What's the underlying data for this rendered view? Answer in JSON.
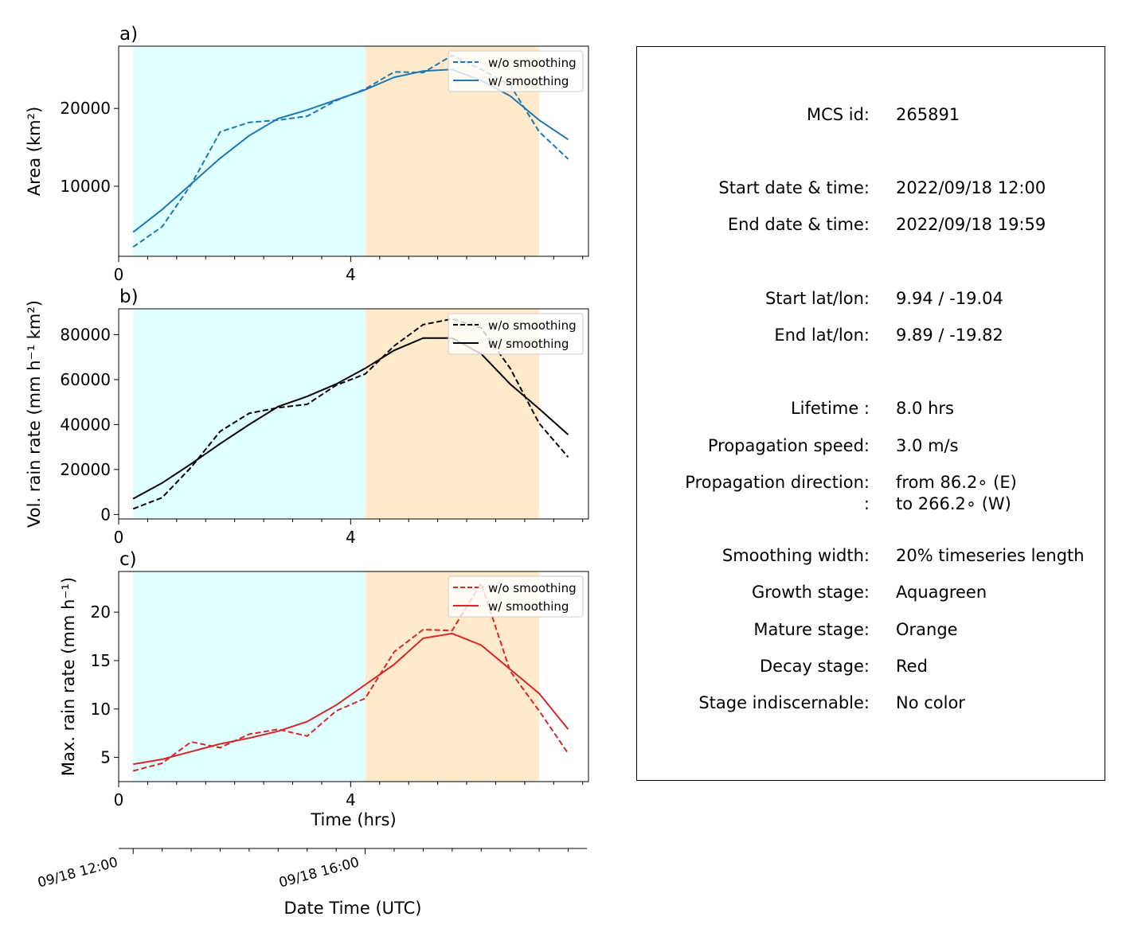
{
  "colors": {
    "growth_shade": "#e0ffff",
    "mature_shade": "#ffebcc",
    "area_line": "#1f77b4",
    "volrain_line": "#000000",
    "maxrain_line": "#d62728"
  },
  "chart_data": [
    {
      "type": "line",
      "panel_label": "a)",
      "ylabel": "Area  (km²)",
      "xlabel": "",
      "xlim": [
        0,
        8.1
      ],
      "ylim": [
        1000,
        28000
      ],
      "x_ticks": [
        0,
        4
      ],
      "y_ticks": [
        10000,
        20000
      ],
      "shaded_regions": [
        {
          "stage": "growth",
          "x": [
            0.25,
            4.25
          ]
        },
        {
          "stage": "mature",
          "x": [
            4.25,
            7.25
          ]
        }
      ],
      "legend": {
        "position": "top-right",
        "entries": [
          "w/o smoothing",
          "w/ smoothing"
        ]
      },
      "series": [
        {
          "name": "w/o smoothing",
          "style": "dashed",
          "x": [
            0.25,
            0.75,
            1.25,
            1.75,
            2.25,
            2.75,
            3.25,
            3.75,
            4.25,
            4.75,
            5.25,
            5.75,
            6.25,
            6.75,
            7.25,
            7.75
          ],
          "values": [
            2200,
            4800,
            10200,
            17000,
            18200,
            18500,
            19000,
            21000,
            22500,
            24700,
            24600,
            26800,
            25000,
            23000,
            17000,
            13500
          ]
        },
        {
          "name": "w/ smoothing",
          "style": "solid",
          "x": [
            0.25,
            0.75,
            1.25,
            1.75,
            2.25,
            2.75,
            3.25,
            3.75,
            4.25,
            4.75,
            5.25,
            5.75,
            6.25,
            6.75,
            7.25,
            7.75
          ],
          "values": [
            4100,
            7000,
            10300,
            13600,
            16500,
            18700,
            19800,
            21100,
            22400,
            24000,
            24800,
            25000,
            23600,
            21600,
            18500,
            16000
          ]
        }
      ]
    },
    {
      "type": "line",
      "panel_label": "b)",
      "ylabel": "Vol. rain rate (mm h⁻¹ km²)",
      "xlabel": "",
      "xlim": [
        0,
        8.1
      ],
      "ylim": [
        -2000,
        91500
      ],
      "x_ticks": [
        0,
        4
      ],
      "y_ticks": [
        0,
        20000,
        40000,
        60000,
        80000
      ],
      "shaded_regions": [
        {
          "stage": "growth",
          "x": [
            0.25,
            4.25
          ]
        },
        {
          "stage": "mature",
          "x": [
            4.25,
            7.25
          ]
        }
      ],
      "legend": {
        "position": "top-right",
        "entries": [
          "w/o smoothing",
          "w/ smoothing"
        ]
      },
      "series": [
        {
          "name": "w/o smoothing",
          "style": "dashed",
          "x": [
            0.25,
            0.75,
            1.25,
            1.75,
            2.25,
            2.75,
            3.25,
            3.75,
            4.25,
            4.75,
            5.25,
            5.75,
            6.25,
            6.75,
            7.25,
            7.75
          ],
          "values": [
            2500,
            7500,
            21000,
            37000,
            45000,
            47500,
            49000,
            57500,
            62500,
            75000,
            84500,
            87000,
            83000,
            65000,
            40500,
            25500
          ]
        },
        {
          "name": "w/ smoothing",
          "style": "solid",
          "x": [
            0.25,
            0.75,
            1.25,
            1.75,
            2.25,
            2.75,
            3.25,
            3.75,
            4.25,
            4.75,
            5.25,
            5.75,
            6.25,
            6.75,
            7.25,
            7.75
          ],
          "values": [
            7000,
            14000,
            22500,
            31500,
            40000,
            48000,
            52500,
            58000,
            65000,
            73000,
            78500,
            78500,
            71500,
            58000,
            47000,
            35500
          ]
        }
      ]
    },
    {
      "type": "line",
      "panel_label": "c)",
      "ylabel": "Max. rain rate  (mm h⁻¹)",
      "xlabel": "Time (hrs)",
      "xlim": [
        0,
        8.1
      ],
      "ylim": [
        2.5,
        24.2
      ],
      "x_ticks": [
        0,
        4
      ],
      "y_ticks": [
        5,
        10,
        15,
        20
      ],
      "shaded_regions": [
        {
          "stage": "growth",
          "x": [
            0.25,
            4.25
          ]
        },
        {
          "stage": "mature",
          "x": [
            4.25,
            7.25
          ]
        }
      ],
      "legend": {
        "position": "top-right",
        "entries": [
          "w/o smoothing",
          "w/ smoothing"
        ]
      },
      "series": [
        {
          "name": "w/o smoothing",
          "style": "dashed",
          "x": [
            0.25,
            0.75,
            1.25,
            1.75,
            2.25,
            2.75,
            3.25,
            3.75,
            4.25,
            4.75,
            5.25,
            5.75,
            6.25,
            6.75,
            7.25,
            7.75
          ],
          "values": [
            3.6,
            4.4,
            6.6,
            6.0,
            7.4,
            7.9,
            7.2,
            9.8,
            11.1,
            15.9,
            18.2,
            18.1,
            23.0,
            13.9,
            9.8,
            5.4
          ]
        },
        {
          "name": "w/ smoothing",
          "style": "solid",
          "x": [
            0.25,
            0.75,
            1.25,
            1.75,
            2.25,
            2.75,
            3.25,
            3.75,
            4.25,
            4.75,
            5.25,
            5.75,
            6.25,
            6.75,
            7.25,
            7.75
          ],
          "values": [
            4.3,
            4.8,
            5.6,
            6.4,
            7.0,
            7.7,
            8.7,
            10.4,
            12.5,
            14.6,
            17.3,
            17.8,
            16.6,
            14.1,
            11.6,
            7.9
          ]
        }
      ]
    }
  ],
  "datetime_axis": {
    "xlabel": "Date Time (UTC)",
    "tick_labels": [
      "09/18 12:00",
      "09/18 16:00"
    ]
  },
  "info": [
    {
      "label": "MCS id:",
      "value": "265891"
    },
    {
      "label": "Start date & time:",
      "value": "2022/09/18 12:00"
    },
    {
      "label": "End date & time:",
      "value": "2022/09/18 19:59"
    },
    {
      "label": "Start lat/lon:",
      "value": "9.94 / -19.04"
    },
    {
      "label": "End lat/lon:",
      "value": "9.89 / -19.82"
    },
    {
      "label": "Lifetime :",
      "value": "8.0 hrs"
    },
    {
      "label": "Propagation speed:",
      "value": "3.0 m/s"
    },
    {
      "label": "Propagation direction:",
      "value": "from  86.2∘ (E)"
    },
    {
      "label": ":",
      "value": "to   266.2∘ (W)"
    },
    {
      "label": "Smoothing width:",
      "value": "20% timeseries length"
    },
    {
      "label": "Growth stage:",
      "value": "Aquagreen"
    },
    {
      "label": "Mature stage:",
      "value": "Orange"
    },
    {
      "label": "Decay stage:",
      "value": "Red"
    },
    {
      "label": "Stage indiscernable:",
      "value": "No color"
    }
  ]
}
